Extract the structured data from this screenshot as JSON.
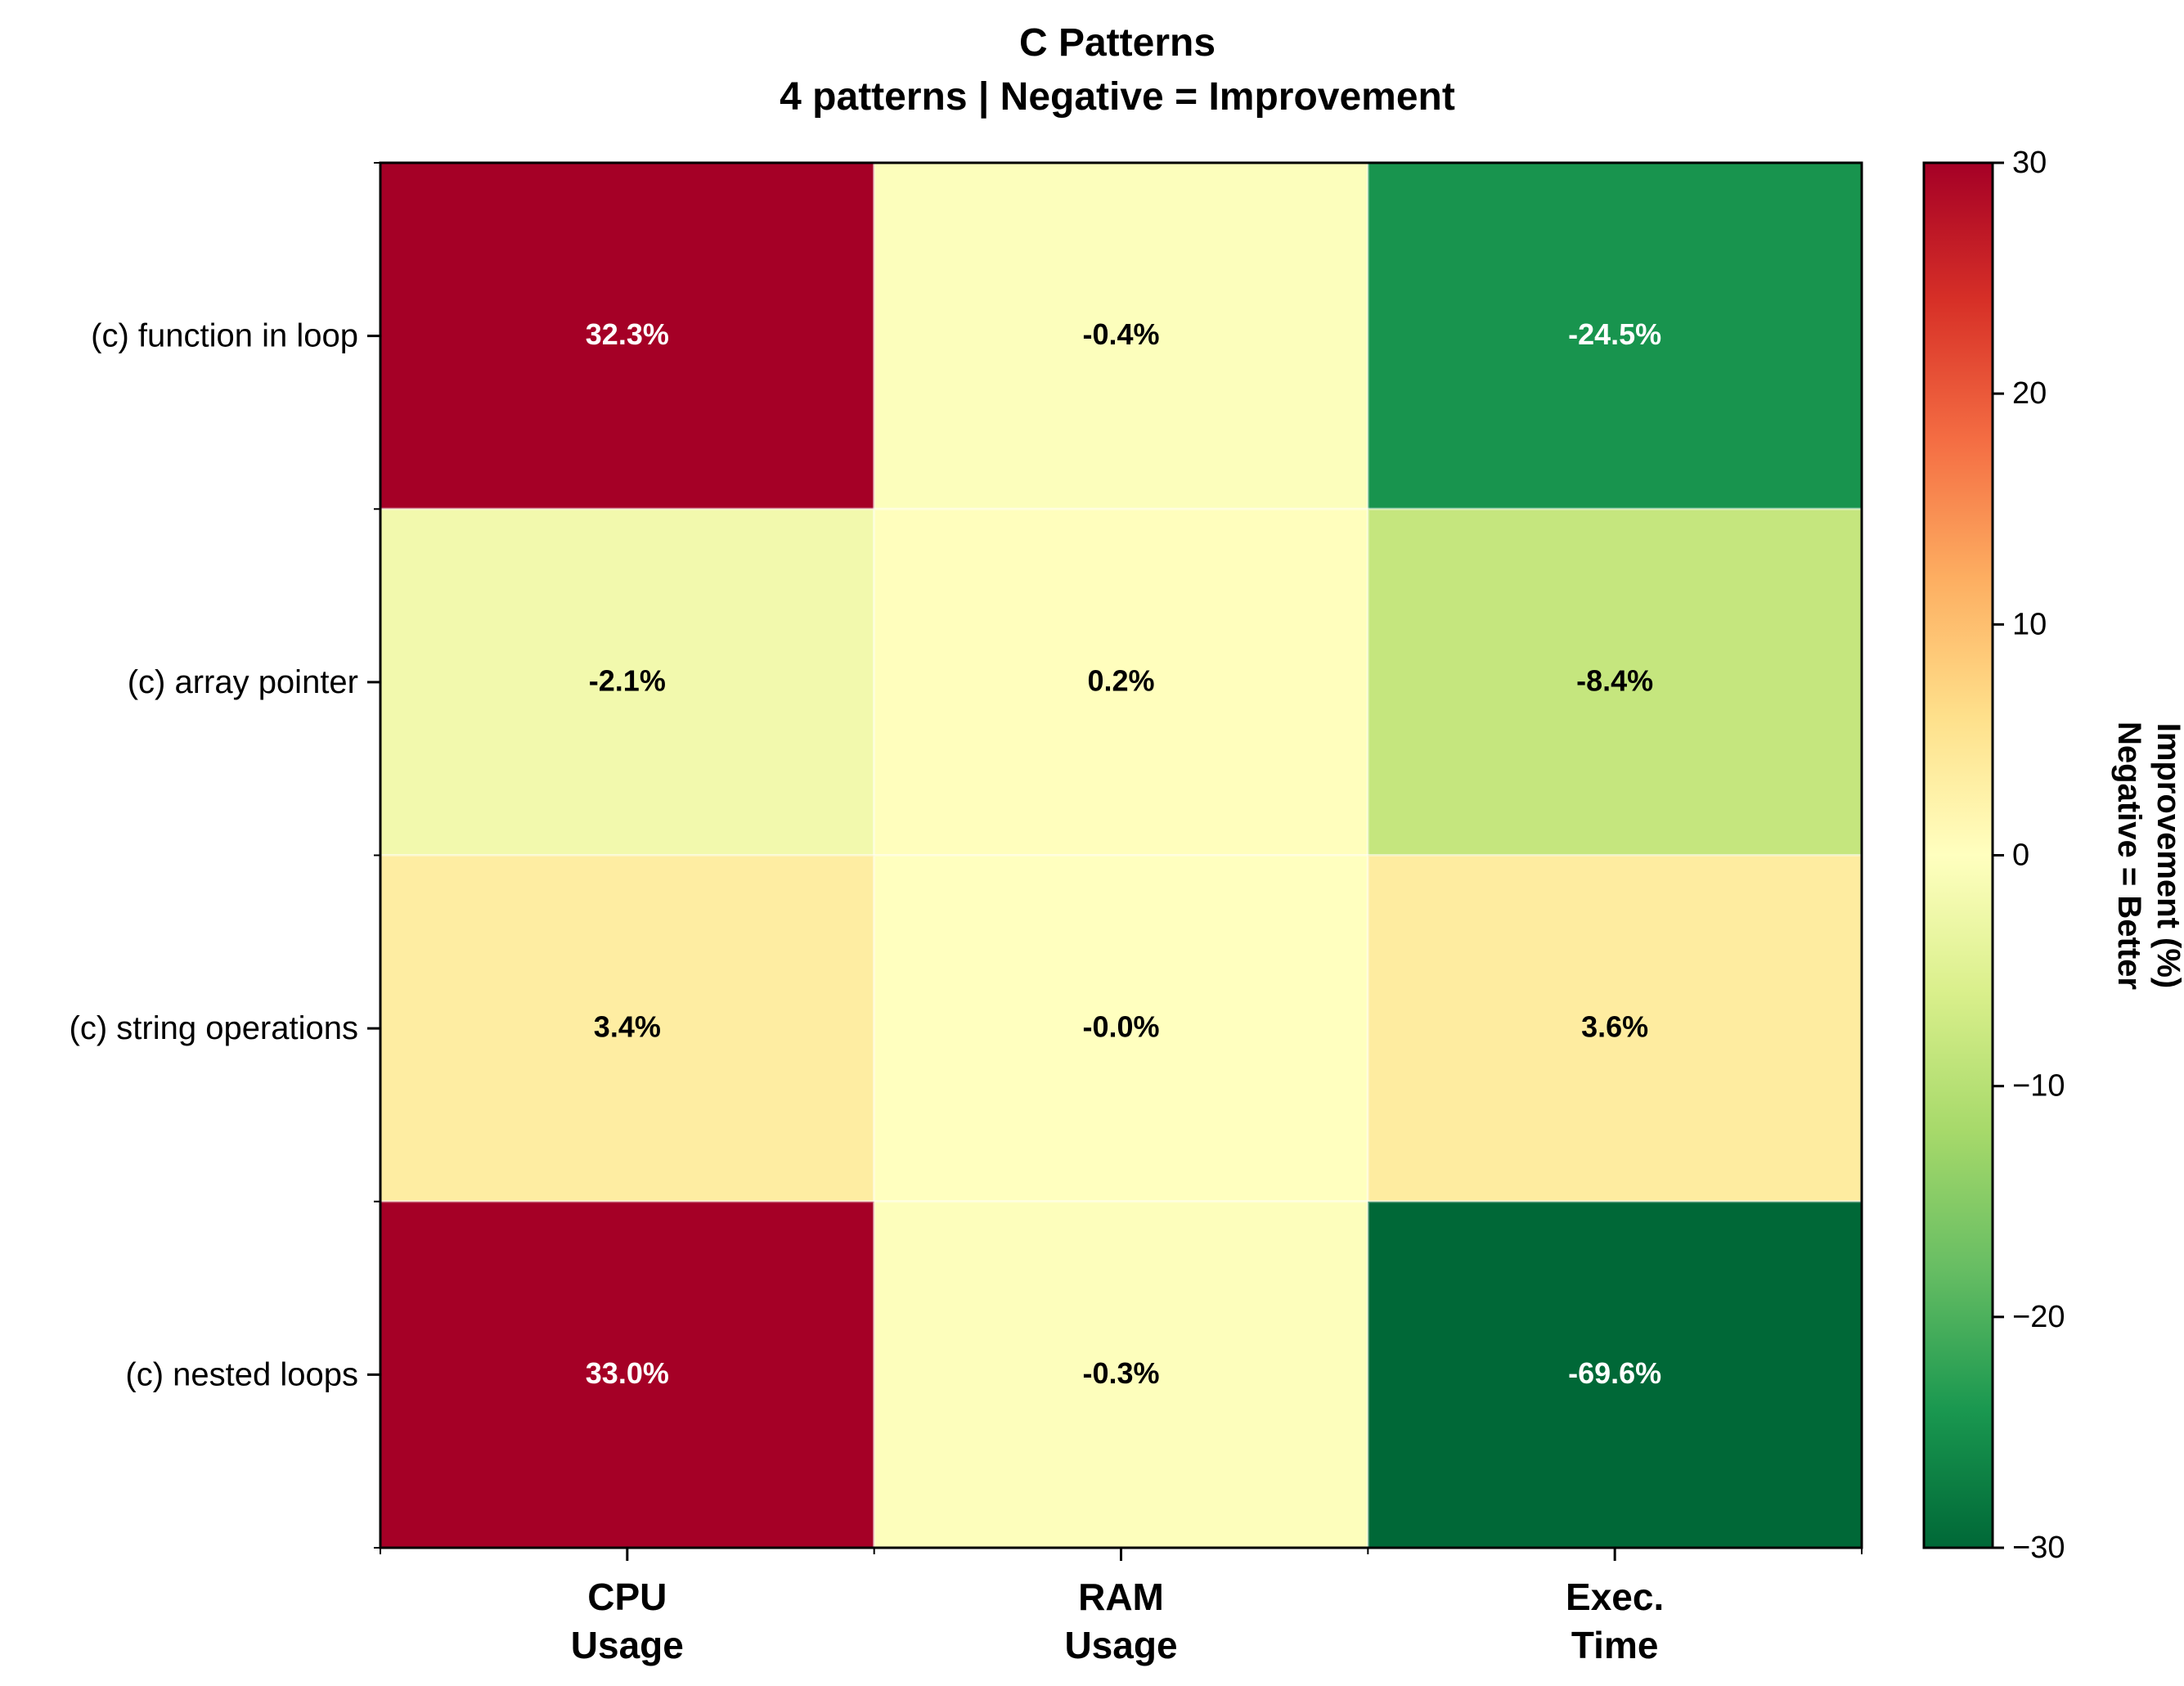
{
  "chart_data": {
    "type": "heatmap",
    "title": "C Patterns",
    "subtitle": "4 patterns | Negative = Improvement",
    "columns": [
      {
        "line1": "CPU",
        "line2": "Usage"
      },
      {
        "line1": "RAM",
        "line2": "Usage"
      },
      {
        "line1": "Exec.",
        "line2": "Time"
      }
    ],
    "rows": [
      "(c) function in loop",
      "(c) array pointer",
      "(c) string operations",
      "(c) nested loops"
    ],
    "values": [
      [
        32.3,
        -0.4,
        -24.5
      ],
      [
        -2.1,
        0.2,
        -8.4
      ],
      [
        3.4,
        -0.0,
        3.6
      ],
      [
        33.0,
        -0.3,
        -69.6
      ]
    ],
    "cell_labels": [
      [
        "32.3%",
        "-0.4%",
        "-24.5%"
      ],
      [
        "-2.1%",
        "0.2%",
        "-8.4%"
      ],
      [
        "3.4%",
        "-0.0%",
        "3.6%"
      ],
      [
        "33.0%",
        "-0.3%",
        "-69.6%"
      ]
    ],
    "colorbar": {
      "label_line1": "Improvement (%)",
      "label_line2": "Negative = Better",
      "min": -30,
      "max": 30,
      "ticks": [
        30,
        20,
        10,
        0,
        -10,
        -20,
        -30
      ],
      "tick_labels": [
        "30",
        "20",
        "10",
        "0",
        "−10",
        "−20",
        "−30"
      ],
      "colormap": "RdYlGn_r"
    }
  }
}
